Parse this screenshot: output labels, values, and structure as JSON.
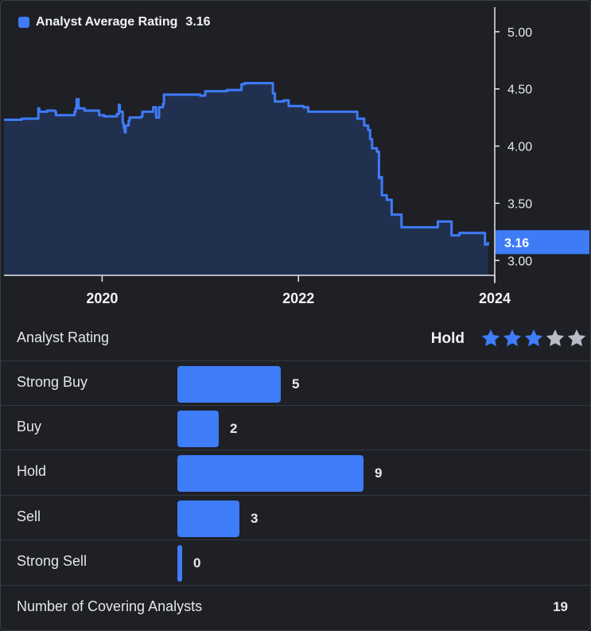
{
  "legend": {
    "label": "Analyst Average Rating",
    "value": "3.16"
  },
  "chart_data": {
    "type": "area",
    "title": "",
    "xlabel": "",
    "ylabel": "",
    "x_ticks": [
      "2020",
      "2022",
      "2024"
    ],
    "y_ticks": [
      "5.00",
      "4.50",
      "4.00",
      "3.50",
      "3.00"
    ],
    "xlim": [
      2019.0,
      2024.0
    ],
    "ylim": [
      2.87,
      5.27
    ],
    "current_value": "3.16",
    "series": [
      {
        "x": [
          2019.0,
          2019.18,
          2019.35,
          2019.36,
          2019.44,
          2019.52,
          2019.53,
          2019.72,
          2019.73,
          2019.74,
          2019.76,
          2019.82,
          2019.97,
          2020.02,
          2020.15,
          2020.17,
          2020.18,
          2020.21,
          2020.22,
          2020.23,
          2020.24,
          2020.27,
          2020.28,
          2020.4,
          2020.41,
          2020.52,
          2020.55,
          2020.58,
          2020.62,
          2020.63,
          2020.84,
          2021.0,
          2021.05,
          2021.25,
          2021.27,
          2021.4,
          2021.42,
          2021.45,
          2021.72,
          2021.74,
          2021.76,
          2021.85,
          2021.9,
          2022.05,
          2022.1,
          2022.55,
          2022.6,
          2022.67,
          2022.71,
          2022.73,
          2022.75,
          2022.8,
          2022.82,
          2022.84,
          2022.85,
          2022.9,
          2022.95,
          2023.05,
          2023.1,
          2023.28,
          2023.42,
          2023.46,
          2023.56,
          2023.64,
          2023.8,
          2023.9,
          2023.93
        ],
        "y": [
          4.23,
          4.24,
          4.33,
          4.3,
          4.31,
          4.3,
          4.27,
          4.3,
          4.33,
          4.41,
          4.33,
          4.31,
          4.27,
          4.26,
          4.28,
          4.36,
          4.3,
          4.2,
          4.16,
          4.12,
          4.18,
          4.22,
          4.25,
          4.26,
          4.3,
          4.34,
          4.25,
          4.34,
          4.37,
          4.45,
          4.45,
          4.44,
          4.48,
          4.48,
          4.49,
          4.49,
          4.54,
          4.55,
          4.55,
          4.46,
          4.39,
          4.4,
          4.35,
          4.34,
          4.3,
          4.3,
          4.24,
          4.18,
          4.14,
          4.06,
          3.98,
          3.95,
          3.72,
          3.73,
          3.57,
          3.53,
          3.4,
          3.29,
          3.29,
          3.29,
          3.34,
          3.34,
          3.22,
          3.24,
          3.24,
          3.14,
          3.16
        ]
      }
    ],
    "colors": {
      "line": "#3d7bf7",
      "area": "#22304f",
      "current_bg": "#3d7bf7"
    },
    "grid": false
  },
  "breakdown": {
    "header_label": "Analyst Rating",
    "rating_word": "Hold",
    "stars": {
      "filled": 3,
      "total": 5
    },
    "max_count": 9,
    "rows": [
      {
        "label": "Strong Buy",
        "count": 5
      },
      {
        "label": "Buy",
        "count": 2
      },
      {
        "label": "Hold",
        "count": 9
      },
      {
        "label": "Sell",
        "count": 3
      },
      {
        "label": "Strong Sell",
        "count": 0
      }
    ],
    "footer_label": "Number of Covering Analysts",
    "footer_value": "19",
    "colors": {
      "bar": "#3f7cf8",
      "star_on": "#3f7cf8",
      "star_off": "#b7bcc6"
    }
  }
}
